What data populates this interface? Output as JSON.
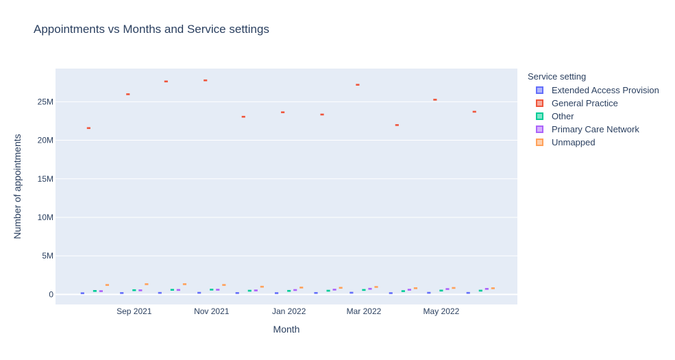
{
  "chart_data": {
    "type": "box",
    "title": "Appointments vs Months and Service settings",
    "xlabel": "Month",
    "ylabel": "Number of appointments",
    "legend_title": "Service setting",
    "legend_position": "right",
    "grid": true,
    "ylim": [
      -1300000,
      29300000
    ],
    "xlim": [
      "2021-07-01",
      "2022-06-30"
    ],
    "y_ticks": [
      {
        "value": 0,
        "label": "0"
      },
      {
        "value": 5000000,
        "label": "5M"
      },
      {
        "value": 10000000,
        "label": "10M"
      },
      {
        "value": 15000000,
        "label": "15M"
      },
      {
        "value": 20000000,
        "label": "20M"
      },
      {
        "value": 25000000,
        "label": "25M"
      }
    ],
    "x_ticks": [
      {
        "value": "2021-09-01",
        "label": "Sep 2021"
      },
      {
        "value": "2021-11-01",
        "label": "Nov 2021"
      },
      {
        "value": "2022-01-01",
        "label": "Jan 2022"
      },
      {
        "value": "2022-03-01",
        "label": "Mar 2022"
      },
      {
        "value": "2022-05-01",
        "label": "May 2022"
      }
    ],
    "months": [
      "2021-08-01",
      "2021-09-01",
      "2021-10-01",
      "2021-11-01",
      "2021-12-01",
      "2022-01-01",
      "2022-02-01",
      "2022-03-01",
      "2022-04-01",
      "2022-05-01",
      "2022-06-01"
    ],
    "series": [
      {
        "name": "Extended Access Provision",
        "color": "#636efa",
        "values": [
          160000,
          180000,
          200000,
          210000,
          180000,
          170000,
          190000,
          220000,
          170000,
          210000,
          200000
        ]
      },
      {
        "name": "General Practice",
        "color": "#ef553b",
        "values": [
          21580000,
          25970000,
          27630000,
          27770000,
          23050000,
          23630000,
          23340000,
          27200000,
          21970000,
          25260000,
          23700000
        ]
      },
      {
        "name": "Other",
        "color": "#00cc96",
        "values": [
          450000,
          550000,
          600000,
          620000,
          480000,
          460000,
          480000,
          580000,
          430000,
          500000,
          490000
        ]
      },
      {
        "name": "Primary Care Network",
        "color": "#ab63fa",
        "values": [
          430000,
          530000,
          580000,
          610000,
          520000,
          570000,
          620000,
          730000,
          610000,
          700000,
          720000
        ]
      },
      {
        "name": "Unmapped",
        "color": "#ffa15a",
        "values": [
          1230000,
          1330000,
          1330000,
          1230000,
          1000000,
          890000,
          860000,
          970000,
          810000,
          840000,
          800000
        ]
      }
    ]
  }
}
